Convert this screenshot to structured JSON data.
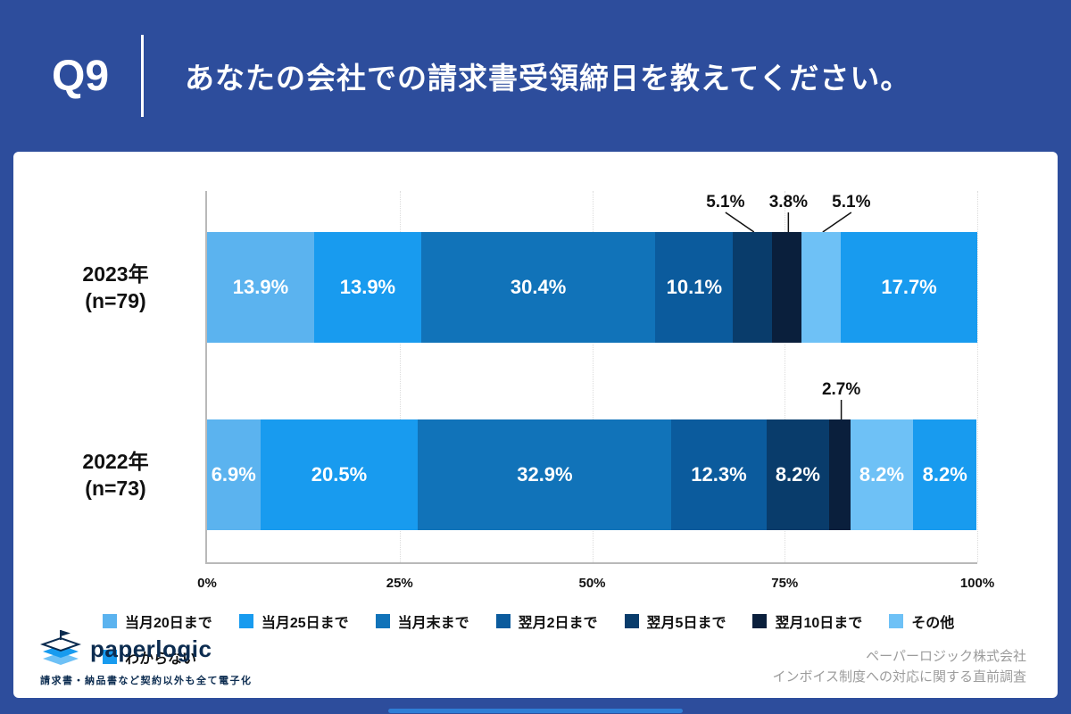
{
  "header": {
    "question_number": "Q9",
    "title": "あなたの会社での請求書受領締日を教えてください。"
  },
  "chart_data": {
    "type": "bar",
    "subtype": "horizontal-stacked",
    "stacked": true,
    "title": "",
    "xlabel": "",
    "ylabel": "",
    "xlim": [
      0,
      100
    ],
    "grid": true,
    "legend_position": "bottom",
    "value_suffix": "%",
    "categories": [
      "当月20日まで",
      "当月25日まで",
      "当月末まで",
      "翌月2日まで",
      "翌月5日まで",
      "翌月10日まで",
      "その他",
      "わからない"
    ],
    "colors": [
      "#5bb3ef",
      "#189bef",
      "#1173b9",
      "#0b5b9d",
      "#093c6b",
      "#0a1f3c",
      "#6ec1f6",
      "#189bef"
    ],
    "series": [
      {
        "name": "2023年",
        "n": "(n=79)",
        "values": [
          13.9,
          13.9,
          30.4,
          10.1,
          5.1,
          3.8,
          5.1,
          17.7
        ],
        "outside_label_indices": [
          4,
          5,
          6
        ]
      },
      {
        "name": "2022年",
        "n": "(n=73)",
        "values": [
          6.9,
          20.5,
          32.9,
          12.3,
          8.2,
          2.7,
          8.2,
          8.2
        ],
        "outside_label_indices": [
          5
        ]
      }
    ],
    "x_ticks": [
      "0%",
      "25%",
      "50%",
      "75%",
      "100%"
    ]
  },
  "footer": {
    "logo_text": "paperlogic",
    "logo_tagline": "請求書・納品書など契約以外も全て電子化",
    "company": "ペーパーロジック株式会社",
    "survey": "インボイス制度への対応に関する直前調査"
  }
}
